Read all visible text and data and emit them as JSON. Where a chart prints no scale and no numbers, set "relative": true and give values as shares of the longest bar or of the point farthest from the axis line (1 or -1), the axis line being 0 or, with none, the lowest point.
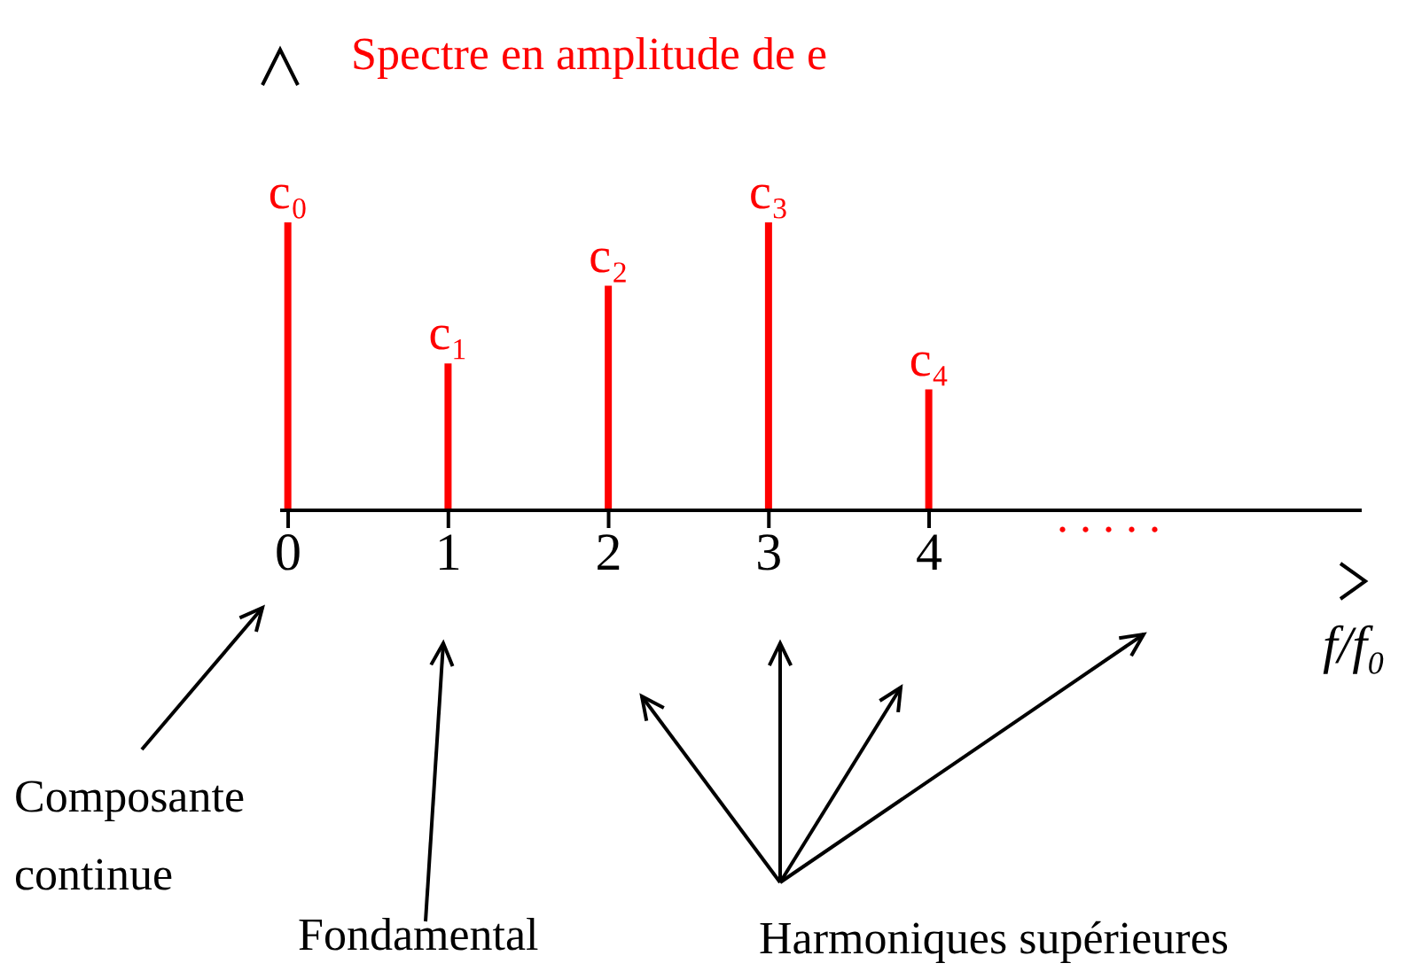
{
  "chart_data": {
    "type": "bar",
    "title": "Spectre en amplitude de e",
    "xlabel": "f/f₀",
    "relative": true,
    "x": [
      0,
      1,
      2,
      3,
      4
    ],
    "values": [
      1,
      0.51,
      0.78,
      1,
      0.42
    ],
    "color": "#ff0000",
    "xlim": [
      -0.05,
      6.7
    ],
    "xticks": [
      0,
      1,
      2,
      3,
      4
    ],
    "grid": false,
    "legend": false,
    "annotations": [
      {
        "text": "c₀",
        "x": 0,
        "y": 1
      },
      {
        "text": "c₁",
        "x": 1,
        "y": 0.51
      },
      {
        "text": "c₂",
        "x": 2,
        "y": 0.78
      },
      {
        "text": "c₃",
        "x": 3,
        "y": 1
      },
      {
        "text": "c₄",
        "x": 4,
        "y": 0.42
      },
      ". . . . .",
      "Composante continue",
      "Fondamental",
      "Harmoniques supérieures"
    ]
  }
}
